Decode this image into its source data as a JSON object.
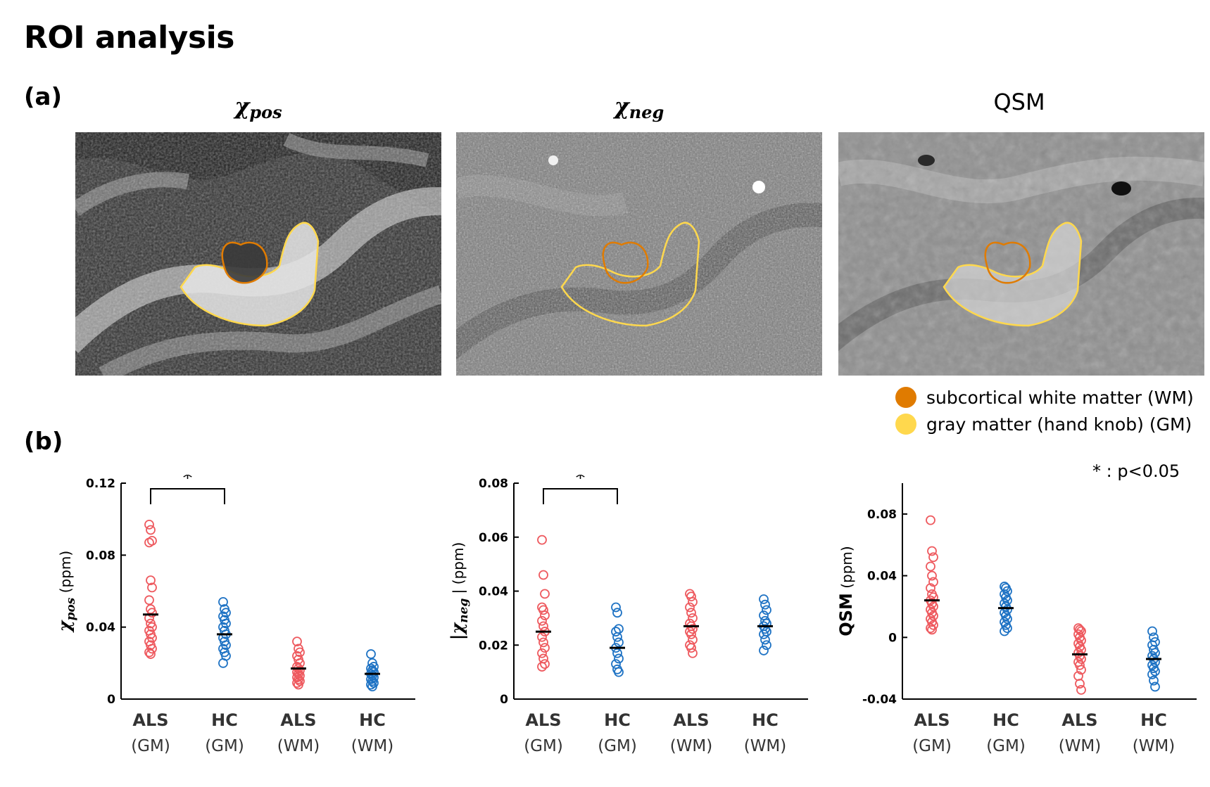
{
  "page": {
    "title": "ROI analysis",
    "panel_a_label": "(a)",
    "panel_b_label": "(b)",
    "significance_note": "* : p<0.05"
  },
  "images": [
    {
      "title_main": "χ",
      "title_sub": "pos",
      "kind": "pos"
    },
    {
      "title_main": "χ",
      "title_sub": "neg",
      "kind": "neg"
    },
    {
      "title_main": "QSM",
      "title_sub": "",
      "kind": "qsm"
    }
  ],
  "legend": [
    {
      "label": "subcortical white matter (WM)",
      "color": "#e07b00"
    },
    {
      "label": "gray matter (hand knob) (GM)",
      "color": "#ffd84d"
    }
  ],
  "colors": {
    "als": "#ee5a5f",
    "hc": "#1f73c4",
    "mean": "#000000"
  },
  "chart_data": [
    {
      "type": "scatter",
      "ylabel_main": "χ",
      "ylabel_sub": "pos",
      "ylabel_unit": "(ppm)",
      "ylim": [
        0,
        0.12
      ],
      "yticks": [
        "0",
        "0.04",
        "0.08",
        "0.12"
      ],
      "categories": [
        "ALS",
        "HC",
        "ALS",
        "HC"
      ],
      "category_groups": [
        "(GM)",
        "(GM)",
        "(WM)",
        "(WM)"
      ],
      "significance": {
        "from": 0,
        "to": 1,
        "label": "*"
      },
      "series": [
        {
          "name": "ALS (GM)",
          "group": "als",
          "mean": 0.047,
          "values": [
            0.097,
            0.094,
            0.088,
            0.087,
            0.066,
            0.062,
            0.055,
            0.05,
            0.048,
            0.045,
            0.042,
            0.04,
            0.038,
            0.036,
            0.034,
            0.032,
            0.03,
            0.028,
            0.026,
            0.025
          ]
        },
        {
          "name": "HC (GM)",
          "group": "hc",
          "mean": 0.036,
          "values": [
            0.054,
            0.05,
            0.048,
            0.046,
            0.044,
            0.042,
            0.04,
            0.038,
            0.036,
            0.034,
            0.032,
            0.03,
            0.028,
            0.026,
            0.024,
            0.02
          ]
        },
        {
          "name": "ALS (WM)",
          "group": "als",
          "mean": 0.017,
          "values": [
            0.032,
            0.028,
            0.026,
            0.024,
            0.022,
            0.02,
            0.018,
            0.017,
            0.016,
            0.015,
            0.014,
            0.013,
            0.012,
            0.011,
            0.01,
            0.009,
            0.008
          ]
        },
        {
          "name": "HC (WM)",
          "group": "hc",
          "mean": 0.014,
          "values": [
            0.025,
            0.02,
            0.018,
            0.017,
            0.016,
            0.015,
            0.014,
            0.013,
            0.012,
            0.011,
            0.01,
            0.009,
            0.008,
            0.007
          ]
        }
      ]
    },
    {
      "type": "scatter",
      "ylabel_main": "|χ",
      "ylabel_sub": "neg",
      "ylabel_unit": "| (ppm)",
      "ylim": [
        0,
        0.08
      ],
      "yticks": [
        "0",
        "0.02",
        "0.04",
        "0.06",
        "0.08"
      ],
      "categories": [
        "ALS",
        "HC",
        "ALS",
        "HC"
      ],
      "category_groups": [
        "(GM)",
        "(GM)",
        "(WM)",
        "(WM)"
      ],
      "significance": {
        "from": 0,
        "to": 1,
        "label": "*"
      },
      "series": [
        {
          "name": "ALS (GM)",
          "group": "als",
          "mean": 0.025,
          "values": [
            0.059,
            0.046,
            0.039,
            0.034,
            0.033,
            0.031,
            0.029,
            0.027,
            0.025,
            0.023,
            0.021,
            0.019,
            0.017,
            0.015,
            0.013,
            0.012
          ]
        },
        {
          "name": "HC (GM)",
          "group": "hc",
          "mean": 0.019,
          "values": [
            0.034,
            0.032,
            0.026,
            0.025,
            0.023,
            0.021,
            0.019,
            0.017,
            0.015,
            0.013,
            0.011,
            0.01
          ]
        },
        {
          "name": "ALS (WM)",
          "group": "als",
          "mean": 0.027,
          "values": [
            0.039,
            0.038,
            0.036,
            0.034,
            0.032,
            0.03,
            0.028,
            0.027,
            0.026,
            0.025,
            0.024,
            0.022,
            0.02,
            0.019,
            0.017
          ]
        },
        {
          "name": "HC (WM)",
          "group": "hc",
          "mean": 0.027,
          "values": [
            0.037,
            0.035,
            0.033,
            0.031,
            0.029,
            0.028,
            0.027,
            0.026,
            0.025,
            0.024,
            0.022,
            0.02,
            0.018
          ]
        }
      ]
    },
    {
      "type": "scatter",
      "ylabel_main": "QSM",
      "ylabel_sub": "",
      "ylabel_unit": "(ppm)",
      "ylim": [
        -0.04,
        0.1
      ],
      "yticks": [
        "-0.04",
        "0",
        "0.04",
        "0.08"
      ],
      "yticks_values": [
        -0.04,
        0,
        0.04,
        0.08
      ],
      "categories": [
        "ALS",
        "HC",
        "ALS",
        "HC"
      ],
      "category_groups": [
        "(GM)",
        "(GM)",
        "(WM)",
        "(WM)"
      ],
      "significance": null,
      "series": [
        {
          "name": "ALS (GM)",
          "group": "als",
          "mean": 0.024,
          "values": [
            0.076,
            0.056,
            0.052,
            0.046,
            0.04,
            0.036,
            0.032,
            0.028,
            0.026,
            0.024,
            0.022,
            0.02,
            0.018,
            0.016,
            0.014,
            0.012,
            0.01,
            0.008,
            0.006,
            0.005
          ]
        },
        {
          "name": "HC (GM)",
          "group": "hc",
          "mean": 0.019,
          "values": [
            0.033,
            0.032,
            0.03,
            0.028,
            0.026,
            0.024,
            0.022,
            0.02,
            0.018,
            0.016,
            0.014,
            0.012,
            0.01,
            0.008,
            0.006,
            0.004
          ]
        },
        {
          "name": "ALS (WM)",
          "group": "als",
          "mean": -0.011,
          "values": [
            0.006,
            0.005,
            0.004,
            0.002,
            0.0,
            -0.002,
            -0.004,
            -0.006,
            -0.008,
            -0.01,
            -0.012,
            -0.014,
            -0.016,
            -0.018,
            -0.021,
            -0.025,
            -0.03,
            -0.034
          ]
        },
        {
          "name": "HC (WM)",
          "group": "hc",
          "mean": -0.014,
          "values": [
            0.004,
            0.0,
            -0.003,
            -0.005,
            -0.008,
            -0.01,
            -0.012,
            -0.014,
            -0.016,
            -0.018,
            -0.02,
            -0.022,
            -0.024,
            -0.028,
            -0.032
          ]
        }
      ]
    }
  ]
}
